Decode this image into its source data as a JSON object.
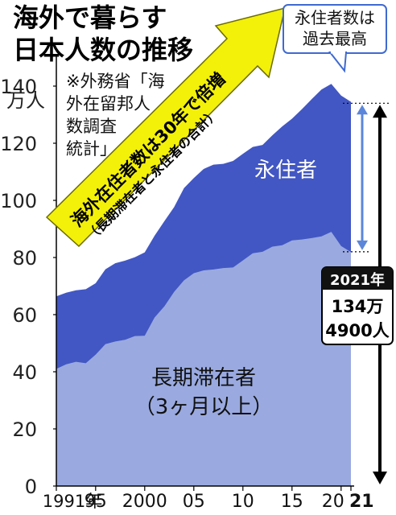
{
  "chart_data": {
    "type": "area",
    "title_lines": [
      "海外で暮らす",
      "日本人数の推移"
    ],
    "y_unit_label": "万人",
    "source_lines": [
      "※外務省「海",
      "外在留邦人",
      "数調査",
      "統計」"
    ],
    "arrow_text_lines": [
      "海外在住者数は30年で倍増",
      "（長期滞在者と永住者の合計）"
    ],
    "callout_lines": [
      "永住者数は",
      "過去最高"
    ],
    "box_year": "2021年",
    "box_value_lines": [
      "134万",
      "4900人"
    ],
    "ylim": [
      0,
      140
    ],
    "yticks": [
      0,
      20,
      40,
      60,
      80,
      100,
      120,
      140
    ],
    "xlim": [
      1991,
      2021
    ],
    "xtick_values": [
      1991,
      1995,
      2000,
      2005,
      2010,
      2015,
      2020,
      2021
    ],
    "xtick_labels": [
      "1991年",
      "95",
      "2000",
      "05",
      "10",
      "15",
      "20",
      "21"
    ],
    "x": [
      1991,
      1992,
      1993,
      1994,
      1995,
      1996,
      1997,
      1998,
      1999,
      2000,
      2001,
      2002,
      2003,
      2004,
      2005,
      2006,
      2007,
      2008,
      2009,
      2010,
      2011,
      2012,
      2013,
      2014,
      2015,
      2016,
      2017,
      2018,
      2019,
      2020,
      2021
    ],
    "series": [
      {
        "name": "長期滞在者（3ヶ月以上）",
        "label_lines": [
          "長期滞在者",
          "（3ヶ月以上）"
        ],
        "color": "#9aaae0",
        "values": [
          41.0,
          42.6,
          43.5,
          43.0,
          46.0,
          49.7,
          50.6,
          51.2,
          52.5,
          52.6,
          59.0,
          62.9,
          68.0,
          72.0,
          74.5,
          75.5,
          75.8,
          76.3,
          76.5,
          79.0,
          81.5,
          82.0,
          83.8,
          84.3,
          86.0,
          86.3,
          86.8,
          87.4,
          89.0,
          84.0,
          81.9
        ]
      },
      {
        "name": "永住者",
        "label_lines": [
          "永住者"
        ],
        "color": "#4257c3",
        "values": [
          25.4,
          25.1,
          25.0,
          25.9,
          25.0,
          26.2,
          27.4,
          27.7,
          27.6,
          29.2,
          28.6,
          29.8,
          29.7,
          32.3,
          33.3,
          35.5,
          36.7,
          36.5,
          37.3,
          37.3,
          37.2,
          37.4,
          39.0,
          41.6,
          42.6,
          45.6,
          48.6,
          51.4,
          51.8,
          52.7,
          52.6
        ]
      }
    ],
    "annotation_range": [
      82,
      134
    ]
  }
}
